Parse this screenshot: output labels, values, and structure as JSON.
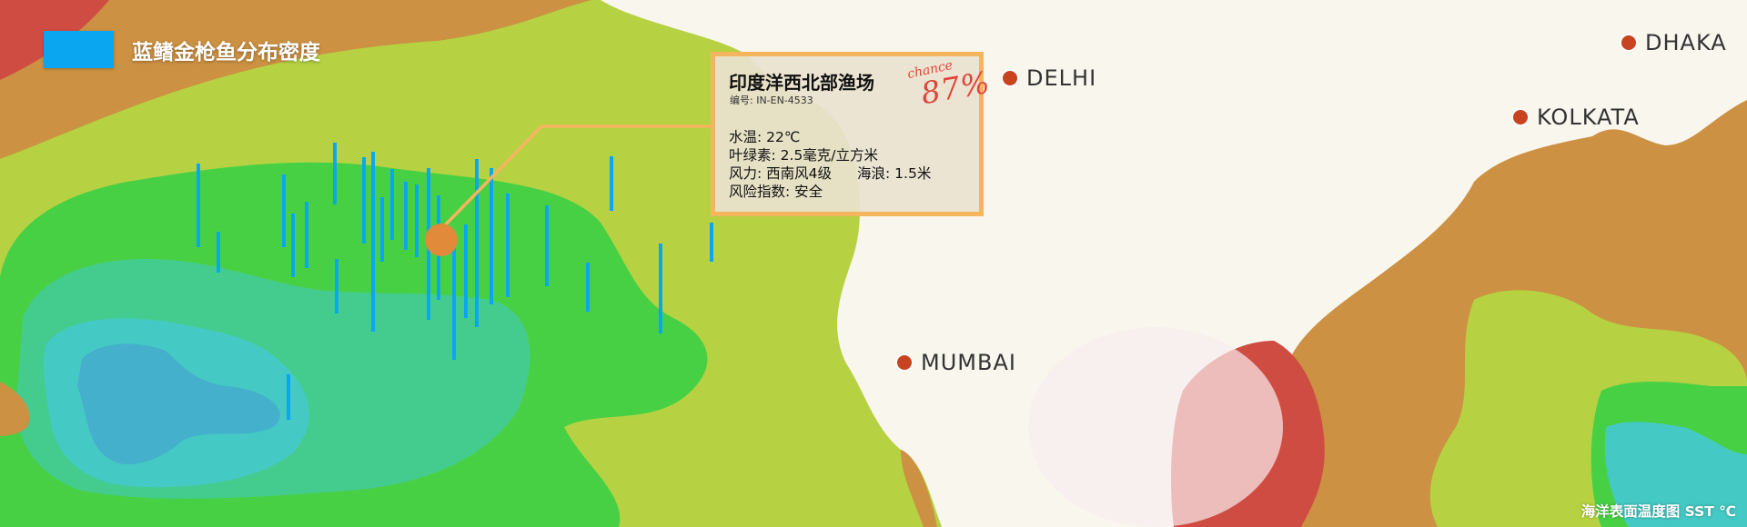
{
  "legend": {
    "label": "蓝鳍金枪鱼分布密度",
    "swatch_color": "#0aa7f0"
  },
  "popup": {
    "title": "印度洋西北部渔场",
    "id_text": "编号: IN-EN-4533",
    "chance_word": "chance",
    "chance_value": "87%",
    "stats": {
      "water_temp": "水温: 22℃",
      "chlorophyll": "叶绿素: 2.5毫克/立方米",
      "wind": "风力: 西南风4级",
      "waves": "海浪: 1.5米",
      "risk": "风险指数: 安全"
    },
    "border_color": "#f5b45e"
  },
  "cities": [
    {
      "name": "DELHI"
    },
    {
      "name": "MUMBAI"
    },
    {
      "name": "KOLKATA"
    },
    {
      "name": "DHAKA"
    }
  ],
  "fishery_marker": {
    "color": "#e08a3a"
  },
  "map_caption": "海洋表面温度图 SST ℃",
  "colors": {
    "land": "#f9f6ee",
    "sst_warmest": "#cf4c43",
    "sst_warm": "#cc9142",
    "sst_mild": "#b6d243",
    "sst_cool": "#48d045",
    "sst_cold": "#44cc8f",
    "sst_coldest": "#45c9c4",
    "sst_deep": "#44b0cc",
    "density_bars": "#0aa7f0"
  }
}
